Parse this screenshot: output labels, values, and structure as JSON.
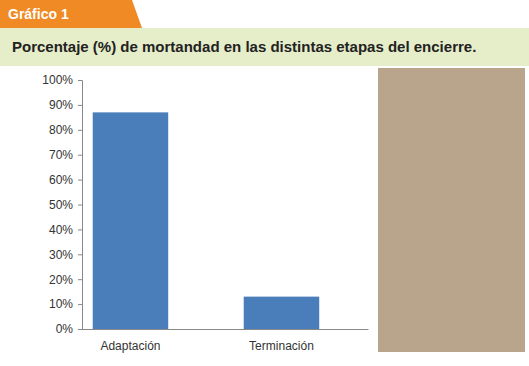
{
  "header": {
    "tag": "Gráfico 1"
  },
  "chart_data": {
    "type": "bar",
    "title": "Porcentaje (%) de mortandad en las distintas etapas del encierre.",
    "categories": [
      "Adaptación",
      "Terminación"
    ],
    "values": [
      87,
      13
    ],
    "color": "#4a7ebb",
    "ylim": [
      0,
      100
    ],
    "yticks": [
      {
        "value": 0,
        "label": "0%"
      },
      {
        "value": 10,
        "label": "10%"
      },
      {
        "value": 20,
        "label": "20%"
      },
      {
        "value": 30,
        "label": "30%"
      },
      {
        "value": 40,
        "label": "40%"
      },
      {
        "value": 50,
        "label": "50%"
      },
      {
        "value": 60,
        "label": "60%"
      },
      {
        "value": 70,
        "label": "70%"
      },
      {
        "value": 80,
        "label": "80%"
      },
      {
        "value": 90,
        "label": "90%"
      },
      {
        "value": 100,
        "label": "100%"
      }
    ],
    "grid": false
  }
}
